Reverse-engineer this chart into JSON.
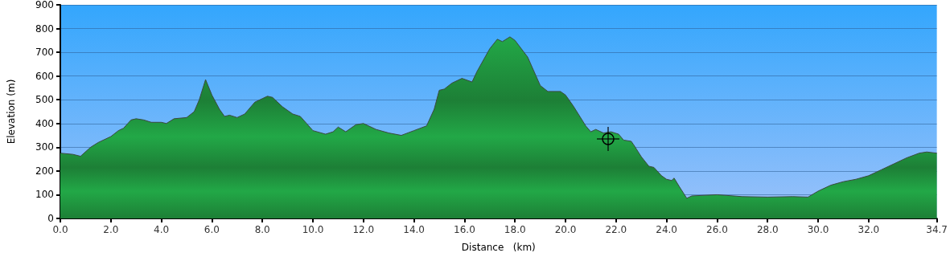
{
  "chart_data": {
    "type": "area",
    "xlabel": "Distance   (km)",
    "ylabel": "Elevation (m)",
    "xlim": [
      0,
      34.7
    ],
    "xticks": [
      {
        "value": 0,
        "label": "0.0"
      },
      {
        "value": 2,
        "label": "2.0"
      },
      {
        "value": 4,
        "label": "4.0"
      },
      {
        "value": 6,
        "label": "6.0"
      },
      {
        "value": 8,
        "label": "8.0"
      },
      {
        "value": 10,
        "label": "10.0"
      },
      {
        "value": 12,
        "label": "12.0"
      },
      {
        "value": 14,
        "label": "14.0"
      },
      {
        "value": 16,
        "label": "16.0"
      },
      {
        "value": 18,
        "label": "18.0"
      },
      {
        "value": 20,
        "label": "20.0"
      },
      {
        "value": 22,
        "label": "22.0"
      },
      {
        "value": 24,
        "label": "24.0"
      },
      {
        "value": 26,
        "label": "26.0"
      },
      {
        "value": 28,
        "label": "28.0"
      },
      {
        "value": 30,
        "label": "30.0"
      },
      {
        "value": 32,
        "label": "32.0"
      },
      {
        "value": 34.7,
        "label": "34.7"
      }
    ],
    "ylim": [
      0,
      900
    ],
    "yticks": [
      0,
      100,
      200,
      300,
      400,
      500,
      600,
      700,
      800,
      900
    ],
    "grid": "y",
    "series": [
      {
        "color": "#22a847",
        "x": [
          0,
          0.5,
          0.8,
          1.2,
          1.5,
          2.0,
          2.3,
          2.5,
          2.8,
          3.0,
          3.3,
          3.6,
          4.0,
          4.2,
          4.5,
          5.0,
          5.3,
          5.5,
          5.75,
          6.0,
          6.3,
          6.5,
          6.7,
          7.0,
          7.3,
          7.7,
          8.0,
          8.2,
          8.4,
          8.8,
          9.2,
          9.5,
          10.0,
          10.5,
          10.8,
          11.0,
          11.3,
          11.7,
          12.0,
          12.5,
          13.0,
          13.5,
          14.0,
          14.5,
          14.8,
          15.0,
          15.2,
          15.5,
          15.9,
          16.3,
          16.5,
          17.0,
          17.3,
          17.5,
          17.8,
          18.0,
          18.5,
          19.0,
          19.3,
          19.8,
          20.0,
          20.3,
          20.8,
          21.0,
          21.2,
          21.5,
          21.8,
          22.1,
          22.3,
          22.6,
          22.7,
          23.0,
          23.3,
          23.5,
          23.8,
          24.0,
          24.2,
          24.3,
          24.5,
          24.8,
          25.0,
          26.0,
          27.0,
          28.0,
          29.0,
          29.6,
          30.0,
          30.5,
          31.0,
          31.5,
          32.0,
          32.5,
          33.0,
          33.5,
          34.0,
          34.3,
          34.7
        ],
        "values": [
          275,
          270,
          262,
          300,
          320,
          345,
          370,
          380,
          415,
          420,
          415,
          405,
          405,
          400,
          420,
          425,
          450,
          500,
          585,
          520,
          460,
          430,
          435,
          425,
          440,
          490,
          505,
          515,
          510,
          470,
          440,
          430,
          370,
          355,
          365,
          385,
          365,
          395,
          400,
          375,
          360,
          350,
          370,
          390,
          460,
          540,
          545,
          570,
          590,
          575,
          620,
          715,
          755,
          745,
          765,
          750,
          680,
          560,
          535,
          535,
          520,
          475,
          390,
          365,
          375,
          360,
          365,
          355,
          330,
          325,
          310,
          260,
          220,
          215,
          180,
          165,
          160,
          170,
          135,
          85,
          95,
          100,
          92,
          90,
          92,
          90,
          115,
          140,
          155,
          165,
          180,
          205,
          230,
          255,
          275,
          280,
          275
        ]
      }
    ]
  }
}
